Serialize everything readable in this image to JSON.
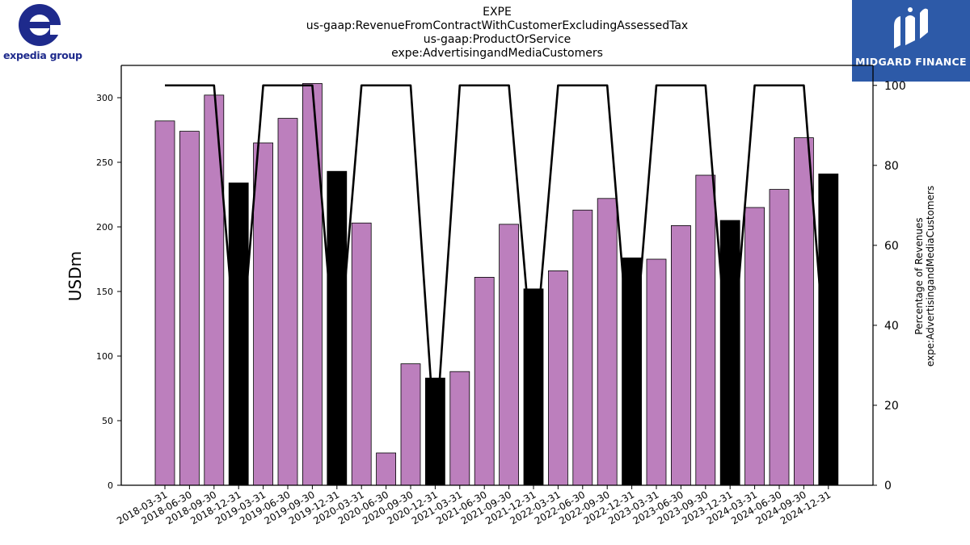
{
  "title_lines": [
    "EXPE",
    "us-gaap:RevenueFromContractWithCustomerExcludingAssessedTax",
    "us-gaap:ProductOrService",
    "expe:AdvertisingandMediaCustomers"
  ],
  "logos": {
    "left_text": "expedia group",
    "right_text": "MIDGARD FINANCE",
    "left_color": "#1e2a8c",
    "right_bg": "#2d5aa8"
  },
  "chart_data": {
    "type": "bar",
    "ylabel": "USDm",
    "y2label_lines": [
      "Percentage of Revenues",
      "expe:AdvertisingandMediaCustomers"
    ],
    "ylim": [
      0,
      325
    ],
    "y2lim": [
      0,
      105
    ],
    "yticks": [
      0,
      50,
      100,
      150,
      200,
      250,
      300
    ],
    "y2ticks": [
      0,
      20,
      40,
      60,
      80,
      100
    ],
    "categories": [
      "2018-03-31",
      "2018-06-30",
      "2018-09-30",
      "2018-12-31",
      "2019-03-31",
      "2019-06-30",
      "2019-09-30",
      "2019-12-31",
      "2020-03-31",
      "2020-06-30",
      "2020-09-30",
      "2020-12-31",
      "2021-03-31",
      "2021-06-30",
      "2021-09-30",
      "2021-12-31",
      "2022-03-31",
      "2022-06-30",
      "2022-09-30",
      "2022-12-31",
      "2023-03-31",
      "2023-06-30",
      "2023-09-30",
      "2023-12-31",
      "2024-03-31",
      "2024-06-30",
      "2024-09-30",
      "2024-12-31"
    ],
    "values": [
      282,
      274,
      302,
      234,
      265,
      284,
      311,
      243,
      203,
      25,
      94,
      83,
      88,
      161,
      202,
      152,
      166,
      213,
      222,
      176,
      175,
      201,
      240,
      205,
      215,
      229,
      269,
      241
    ],
    "bar_colors": {
      "quarter": "#bc7fbd",
      "year_end": "#000000"
    },
    "line_percent": [
      100,
      100,
      100,
      25,
      100,
      100,
      100,
      26,
      100,
      100,
      100,
      10,
      100,
      100,
      100,
      28,
      100,
      100,
      100,
      25,
      100,
      100,
      100,
      24,
      100,
      100,
      100,
      22
    ],
    "line_color": "#000000"
  }
}
